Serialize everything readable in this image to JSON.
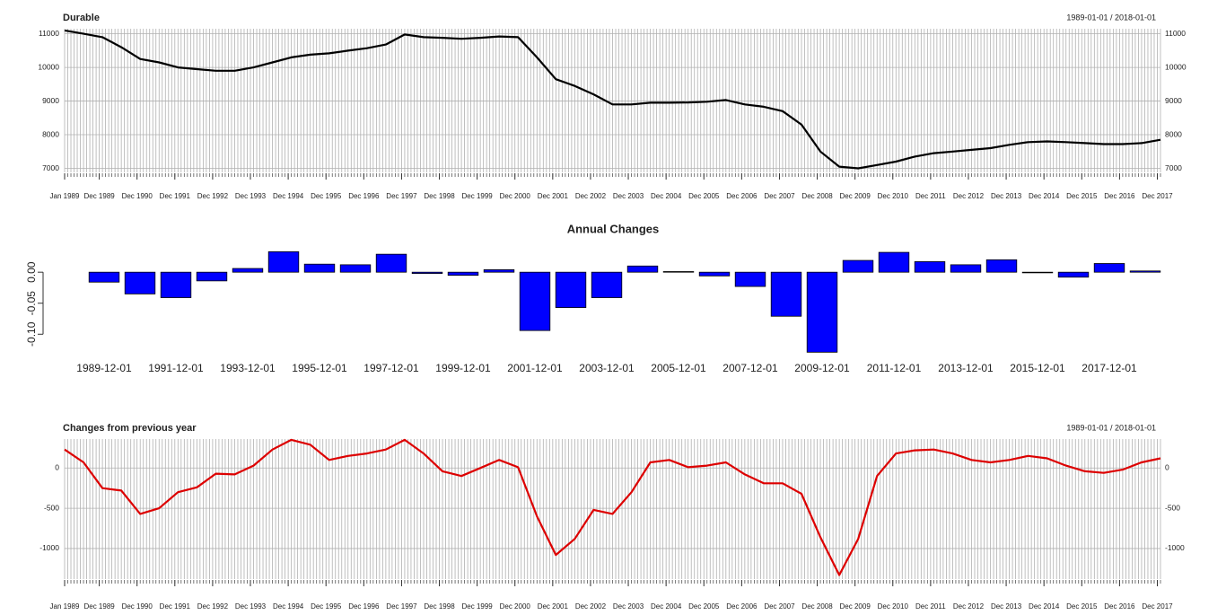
{
  "chart_data": [
    {
      "type": "line",
      "title": "Durable",
      "subtitle": "1989-01-01 / 2018-01-01",
      "x": [
        "1989-01",
        "1989-07",
        "1990-01",
        "1990-07",
        "1991-01",
        "1991-07",
        "1992-01",
        "1992-07",
        "1993-01",
        "1993-07",
        "1994-01",
        "1994-07",
        "1995-01",
        "1995-07",
        "1996-01",
        "1996-07",
        "1997-01",
        "1997-07",
        "1998-01",
        "1998-07",
        "1999-01",
        "1999-07",
        "2000-01",
        "2000-07",
        "2001-01",
        "2001-07",
        "2002-01",
        "2002-07",
        "2003-01",
        "2003-07",
        "2004-01",
        "2004-07",
        "2005-01",
        "2005-07",
        "2006-01",
        "2006-07",
        "2007-01",
        "2007-07",
        "2008-01",
        "2008-07",
        "2009-01",
        "2009-07",
        "2010-01",
        "2010-07",
        "2011-01",
        "2011-07",
        "2012-01",
        "2012-07",
        "2013-01",
        "2013-07",
        "2014-01",
        "2014-07",
        "2015-01",
        "2015-07",
        "2016-01",
        "2016-07",
        "2017-01",
        "2017-07",
        "2018-01"
      ],
      "values": [
        11100,
        11000,
        10900,
        10600,
        10250,
        10150,
        10000,
        9950,
        9900,
        9900,
        10000,
        10150,
        10300,
        10380,
        10420,
        10500,
        10570,
        10680,
        10980,
        10900,
        10880,
        10850,
        10880,
        10920,
        10900,
        10300,
        9650,
        9450,
        9200,
        8900,
        8900,
        8950,
        8950,
        8960,
        8980,
        9030,
        8900,
        8830,
        8700,
        8300,
        7500,
        7050,
        7000,
        7100,
        7200,
        7350,
        7450,
        7500,
        7550,
        7600,
        7700,
        7780,
        7800,
        7780,
        7750,
        7720,
        7720,
        7750,
        7850
      ],
      "color": "#000000",
      "xlim": [
        "1989-01",
        "2018-01"
      ],
      "xticks": [
        {
          "value": "1989-01",
          "label": "Jan 1989"
        },
        {
          "value": "1989-12",
          "label": "Dec 1989"
        },
        {
          "value": "1990-12",
          "label": "Dec 1990"
        },
        {
          "value": "1991-12",
          "label": "Dec 1991"
        },
        {
          "value": "1992-12",
          "label": "Dec 1992"
        },
        {
          "value": "1993-12",
          "label": "Dec 1993"
        },
        {
          "value": "1994-12",
          "label": "Dec 1994"
        },
        {
          "value": "1995-12",
          "label": "Dec 1995"
        },
        {
          "value": "1996-12",
          "label": "Dec 1996"
        },
        {
          "value": "1997-12",
          "label": "Dec 1997"
        },
        {
          "value": "1998-12",
          "label": "Dec 1998"
        },
        {
          "value": "1999-12",
          "label": "Dec 1999"
        },
        {
          "value": "2000-12",
          "label": "Dec 2000"
        },
        {
          "value": "2001-12",
          "label": "Dec 2001"
        },
        {
          "value": "2002-12",
          "label": "Dec 2002"
        },
        {
          "value": "2003-12",
          "label": "Dec 2003"
        },
        {
          "value": "2004-12",
          "label": "Dec 2004"
        },
        {
          "value": "2005-12",
          "label": "Dec 2005"
        },
        {
          "value": "2006-12",
          "label": "Dec 2006"
        },
        {
          "value": "2007-12",
          "label": "Dec 2007"
        },
        {
          "value": "2008-12",
          "label": "Dec 2008"
        },
        {
          "value": "2009-12",
          "label": "Dec 2009"
        },
        {
          "value": "2010-12",
          "label": "Dec 2010"
        },
        {
          "value": "2011-12",
          "label": "Dec 2011"
        },
        {
          "value": "2012-12",
          "label": "Dec 2012"
        },
        {
          "value": "2013-12",
          "label": "Dec 2013"
        },
        {
          "value": "2014-12",
          "label": "Dec 2014"
        },
        {
          "value": "2015-12",
          "label": "Dec 2015"
        },
        {
          "value": "2016-12",
          "label": "Dec 2016"
        },
        {
          "value": "2017-12",
          "label": "Dec 2017"
        }
      ],
      "ylim": [
        6880,
        11150
      ],
      "yticks": [
        7000,
        8000,
        9000,
        10000,
        11000
      ],
      "grid": true
    },
    {
      "type": "bar",
      "title": "Annual Changes",
      "categories": [
        "1989-12-01",
        null,
        "1991-12-01",
        null,
        "1993-12-01",
        null,
        "1995-12-01",
        null,
        "1997-12-01",
        null,
        "1999-12-01",
        null,
        "2001-12-01",
        null,
        "2003-12-01",
        null,
        "2005-12-01",
        null,
        "2007-12-01",
        null,
        "2009-12-01",
        null,
        "2011-12-01",
        null,
        "2013-12-01",
        null,
        "2015-12-01",
        null,
        "2017-12-01",
        null
      ],
      "values": [
        -0.016,
        -0.035,
        -0.041,
        -0.014,
        0.006,
        0.033,
        0.013,
        0.012,
        0.029,
        -0.002,
        -0.005,
        0.004,
        -0.094,
        -0.057,
        -0.041,
        0.01,
        0.001,
        -0.006,
        -0.023,
        -0.071,
        -0.129,
        0.019,
        0.032,
        0.017,
        0.012,
        0.02,
        -0.001,
        -0.008,
        0.014,
        0.002
      ],
      "color": "#0000ff",
      "ylim": [
        -0.13,
        0.035
      ],
      "yticks": [
        {
          "value": -0.1,
          "label": "-0.10"
        },
        {
          "value": -0.05,
          "label": "-0.05"
        },
        {
          "value": 0,
          "label": "0.00"
        }
      ],
      "grid": false
    },
    {
      "type": "line",
      "title": "Changes from previous year",
      "subtitle": "1989-01-01 / 2018-01-01",
      "x": [
        "1989-01",
        "1989-07",
        "1990-01",
        "1990-07",
        "1991-01",
        "1991-07",
        "1992-01",
        "1992-07",
        "1993-01",
        "1993-07",
        "1994-01",
        "1994-07",
        "1995-01",
        "1995-07",
        "1996-01",
        "1996-07",
        "1997-01",
        "1997-07",
        "1998-01",
        "1998-07",
        "1999-01",
        "1999-07",
        "2000-01",
        "2000-07",
        "2001-01",
        "2001-07",
        "2002-01",
        "2002-07",
        "2003-01",
        "2003-07",
        "2004-01",
        "2004-07",
        "2005-01",
        "2005-07",
        "2006-01",
        "2006-07",
        "2007-01",
        "2007-07",
        "2008-01",
        "2008-07",
        "2009-01",
        "2009-07",
        "2010-01",
        "2010-07",
        "2011-01",
        "2011-07",
        "2012-01",
        "2012-07",
        "2013-01",
        "2013-07",
        "2014-01",
        "2014-07",
        "2015-01",
        "2015-07",
        "2016-01",
        "2016-07",
        "2017-01",
        "2017-07",
        "2018-01"
      ],
      "values": [
        230,
        70,
        -250,
        -280,
        -570,
        -500,
        -300,
        -240,
        -70,
        -80,
        30,
        230,
        350,
        290,
        100,
        150,
        180,
        230,
        350,
        180,
        -40,
        -100,
        0,
        100,
        10,
        -600,
        -1080,
        -880,
        -520,
        -570,
        -300,
        70,
        100,
        10,
        30,
        70,
        -80,
        -190,
        -190,
        -320,
        -860,
        -1330,
        -880,
        -100,
        180,
        220,
        230,
        180,
        100,
        70,
        100,
        150,
        120,
        30,
        -40,
        -60,
        -20,
        70,
        120
      ],
      "color": "#dd0000",
      "xlim": [
        "1989-01",
        "2018-01"
      ],
      "xticks": [
        {
          "value": "1989-01",
          "label": "Jan 1989"
        },
        {
          "value": "1989-12",
          "label": "Dec 1989"
        },
        {
          "value": "1990-12",
          "label": "Dec 1990"
        },
        {
          "value": "1991-12",
          "label": "Dec 1991"
        },
        {
          "value": "1992-12",
          "label": "Dec 1992"
        },
        {
          "value": "1993-12",
          "label": "Dec 1993"
        },
        {
          "value": "1994-12",
          "label": "Dec 1994"
        },
        {
          "value": "1995-12",
          "label": "Dec 1995"
        },
        {
          "value": "1996-12",
          "label": "Dec 1996"
        },
        {
          "value": "1997-12",
          "label": "Dec 1997"
        },
        {
          "value": "1998-12",
          "label": "Dec 1998"
        },
        {
          "value": "1999-12",
          "label": "Dec 1999"
        },
        {
          "value": "2000-12",
          "label": "Dec 2000"
        },
        {
          "value": "2001-12",
          "label": "Dec 2001"
        },
        {
          "value": "2002-12",
          "label": "Dec 2002"
        },
        {
          "value": "2003-12",
          "label": "Dec 2003"
        },
        {
          "value": "2004-12",
          "label": "Dec 2004"
        },
        {
          "value": "2005-12",
          "label": "Dec 2005"
        },
        {
          "value": "2006-12",
          "label": "Dec 2006"
        },
        {
          "value": "2007-12",
          "label": "Dec 2007"
        },
        {
          "value": "2008-12",
          "label": "Dec 2008"
        },
        {
          "value": "2009-12",
          "label": "Dec 2009"
        },
        {
          "value": "2010-12",
          "label": "Dec 2010"
        },
        {
          "value": "2011-12",
          "label": "Dec 2011"
        },
        {
          "value": "2012-12",
          "label": "Dec 2012"
        },
        {
          "value": "2013-12",
          "label": "Dec 2013"
        },
        {
          "value": "2014-12",
          "label": "Dec 2014"
        },
        {
          "value": "2015-12",
          "label": "Dec 2015"
        },
        {
          "value": "2016-12",
          "label": "Dec 2016"
        },
        {
          "value": "2017-12",
          "label": "Dec 2017"
        }
      ],
      "ylim": [
        -1380,
        360
      ],
      "yticks": [
        -1000,
        -500,
        0
      ],
      "grid": true
    }
  ]
}
